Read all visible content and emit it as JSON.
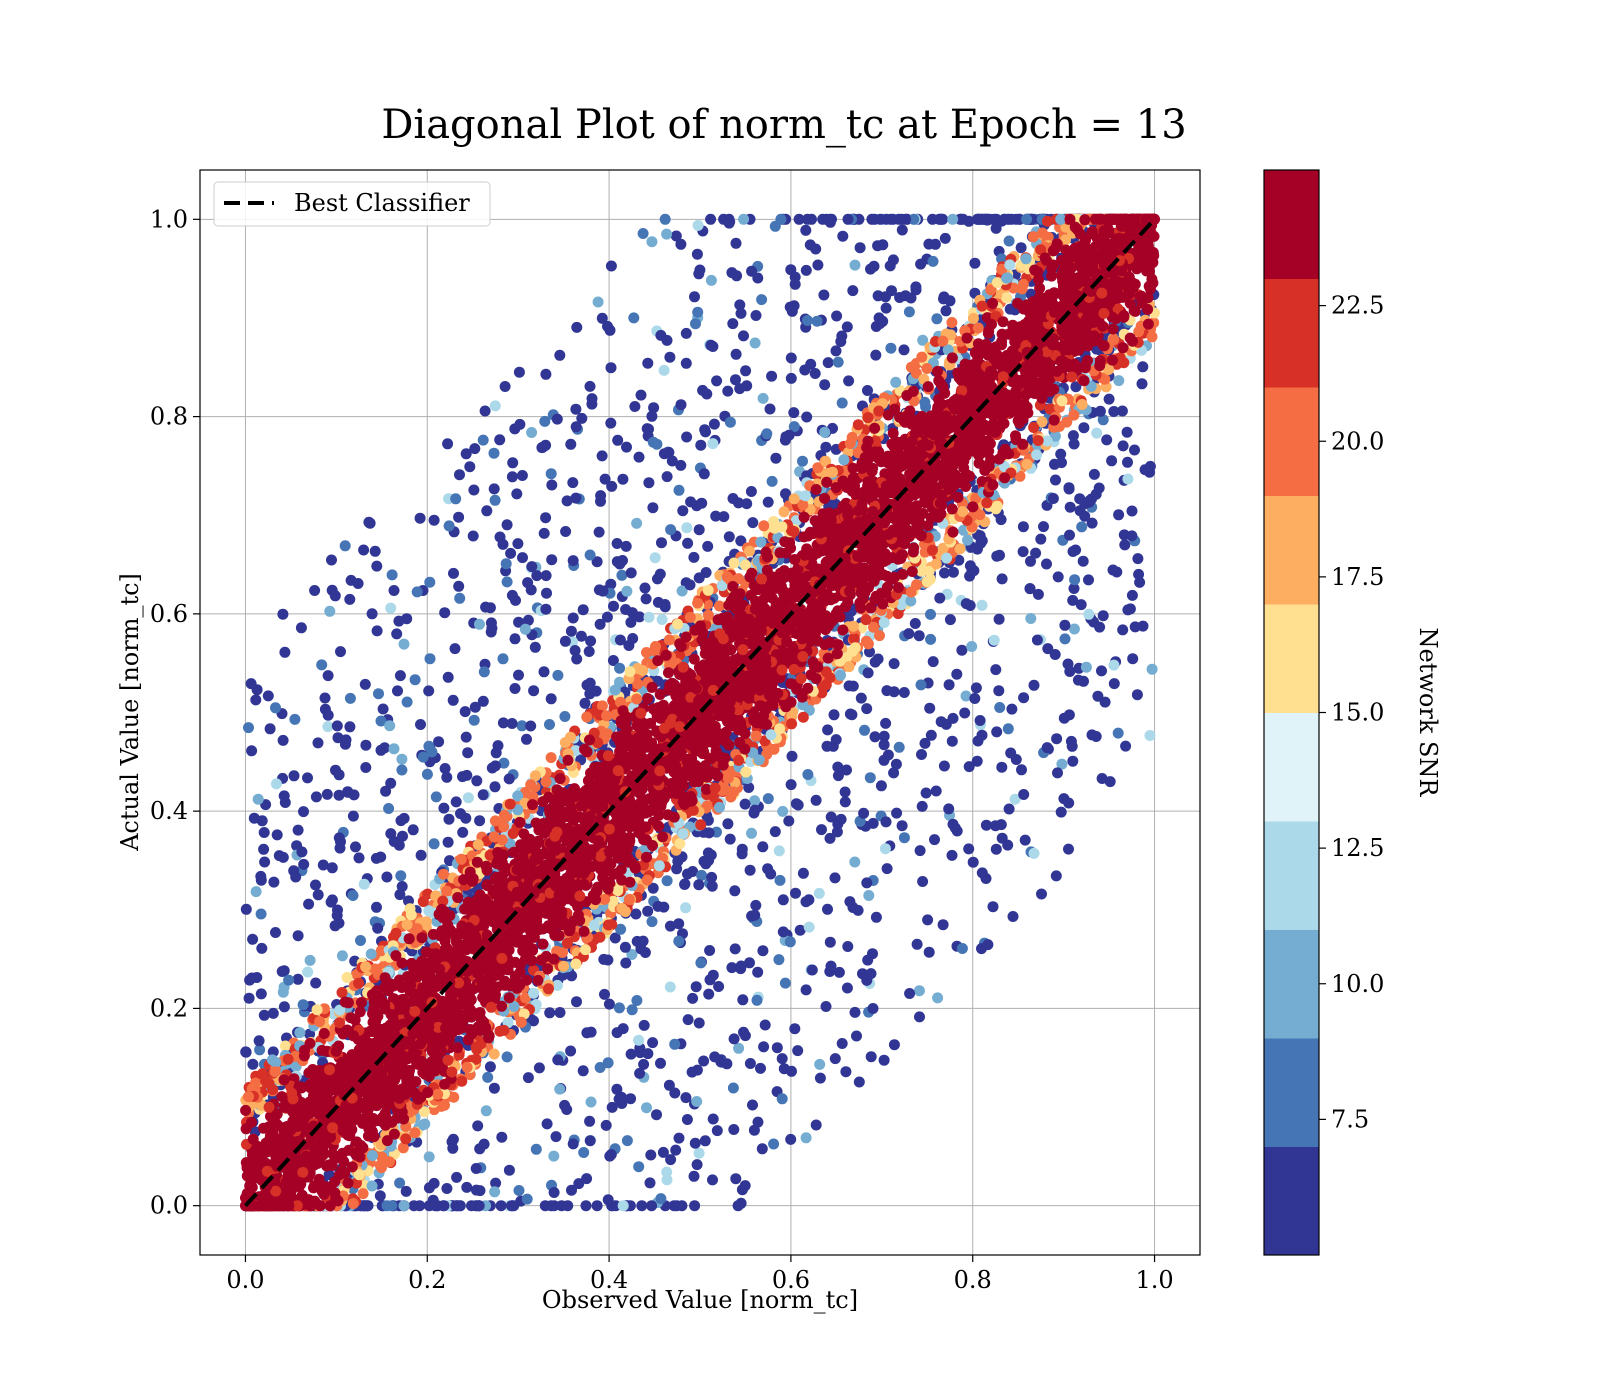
{
  "chart_data": {
    "type": "scatter",
    "title": "Diagonal Plot of norm_tc at Epoch = 13",
    "xlabel": "Observed Value [norm_tc]",
    "ylabel": "Actual Value [norm_tc]",
    "xlim": [
      -0.05,
      1.05
    ],
    "ylim": [
      -0.05,
      1.05
    ],
    "xticks": [
      "0.0",
      "0.2",
      "0.4",
      "0.6",
      "0.8",
      "1.0"
    ],
    "yticks": [
      "0.0",
      "0.2",
      "0.4",
      "0.6",
      "0.8",
      "1.0"
    ],
    "grid": true,
    "legend": {
      "placement": "upper-left",
      "entries": [
        "Best Classifier"
      ]
    },
    "reference_line": {
      "name": "Best Classifier",
      "style": "dashed",
      "color": "#000000",
      "x": [
        0,
        1
      ],
      "y": [
        0,
        1
      ]
    },
    "colorbar": {
      "label": "Network SNR",
      "range": [
        5,
        25
      ],
      "ticks": [
        "7.5",
        "10.0",
        "12.5",
        "15.0",
        "17.5",
        "20.0",
        "22.5"
      ],
      "colors": [
        "#313695",
        "#4575b4",
        "#74add1",
        "#abd9e9",
        "#e0f3f8",
        "#fee090",
        "#fdae61",
        "#f46d43",
        "#d73027",
        "#a50026"
      ]
    },
    "point_summary": {
      "description_of_distribution": "dense diagonal band of high-SNR points along y = x, low-SNR points scattered away from diagonal",
      "high_snr_band_halfwidth": 0.1,
      "max_abs_residual_low_snr": 0.5
    }
  }
}
